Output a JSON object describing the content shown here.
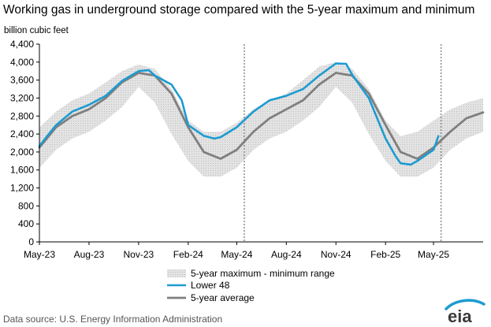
{
  "chart_data": {
    "type": "line",
    "title": "Working gas in underground  storage compared with the 5-year maximum and minimum",
    "ylabel": "billion cubic feet",
    "ylim": [
      0,
      4400
    ],
    "y_ticks": [
      "0",
      "400",
      "800",
      "1,200",
      "1,600",
      "2,000",
      "2,400",
      "2,800",
      "3,200",
      "3,600",
      "4,000",
      "4,400"
    ],
    "y_tick_values": [
      0,
      400,
      800,
      1200,
      1600,
      2000,
      2400,
      2800,
      3200,
      3600,
      4000,
      4400
    ],
    "x_ticks": [
      "May-23",
      "Aug-23",
      "Nov-23",
      "Feb-24",
      "May-24",
      "Aug-24",
      "Nov-24",
      "Feb-25",
      "May-25"
    ],
    "x_tick_dates": [
      "2023-05-01",
      "2023-08-01",
      "2023-11-01",
      "2024-02-01",
      "2024-05-01",
      "2024-08-01",
      "2024-11-01",
      "2025-02-01",
      "2025-05-01"
    ],
    "xlim": [
      "2023-05-01",
      "2025-08-01"
    ],
    "grid": false,
    "legend_position": "bottom-center",
    "vertical_markers": [
      "2024-05-15",
      "2025-05-15"
    ],
    "series": [
      {
        "name": "5-year maximum - minimum range",
        "color": "#d9d9d9",
        "dates": [
          "2023-05-01",
          "2023-06-01",
          "2023-07-01",
          "2023-08-01",
          "2023-09-01",
          "2023-10-01",
          "2023-11-01",
          "2023-12-01",
          "2024-01-01",
          "2024-02-01",
          "2024-03-01",
          "2024-04-01",
          "2024-05-01",
          "2024-06-01",
          "2024-07-01",
          "2024-08-01",
          "2024-09-01",
          "2024-10-01",
          "2024-11-01",
          "2024-12-01",
          "2025-01-01",
          "2025-02-01",
          "2025-03-01",
          "2025-04-01",
          "2025-05-01",
          "2025-06-01",
          "2025-07-01",
          "2025-08-01"
        ],
        "max": [
          2550,
          2900,
          3150,
          3300,
          3550,
          3800,
          3950,
          3850,
          3400,
          2700,
          2450,
          2450,
          2650,
          2950,
          3150,
          3300,
          3600,
          3900,
          4000,
          3850,
          3400,
          2700,
          2350,
          2450,
          2700,
          2950,
          3100,
          3200
        ],
        "min": [
          1650,
          2050,
          2300,
          2450,
          2700,
          3000,
          3450,
          3100,
          2400,
          1800,
          1450,
          1450,
          1650,
          2050,
          2300,
          2450,
          2700,
          3000,
          3450,
          3100,
          2400,
          1800,
          1450,
          1450,
          1650,
          2050,
          2300,
          2450
        ]
      },
      {
        "name": "Lower 48",
        "color": "#1d9bd1",
        "dates": [
          "2023-05-01",
          "2023-05-15",
          "2023-06-01",
          "2023-07-01",
          "2023-08-01",
          "2023-09-01",
          "2023-10-01",
          "2023-11-01",
          "2023-11-20",
          "2023-12-01",
          "2024-01-01",
          "2024-01-20",
          "2024-02-01",
          "2024-03-01",
          "2024-03-20",
          "2024-04-01",
          "2024-05-01",
          "2024-06-01",
          "2024-07-01",
          "2024-08-01",
          "2024-09-01",
          "2024-10-01",
          "2024-11-01",
          "2024-11-20",
          "2024-12-01",
          "2025-01-01",
          "2025-02-01",
          "2025-02-20",
          "2025-03-01",
          "2025-03-20",
          "2025-04-01",
          "2025-05-01",
          "2025-05-10"
        ],
        "values": [
          2130,
          2350,
          2600,
          2900,
          3050,
          3250,
          3580,
          3800,
          3820,
          3700,
          3500,
          3150,
          2600,
          2360,
          2300,
          2330,
          2550,
          2900,
          3150,
          3250,
          3400,
          3700,
          3970,
          3960,
          3720,
          3200,
          2300,
          1900,
          1750,
          1720,
          1800,
          2050,
          2350
        ]
      },
      {
        "name": "5-year average",
        "color": "#7f7f7f",
        "dates": [
          "2023-05-01",
          "2023-06-01",
          "2023-07-01",
          "2023-08-01",
          "2023-09-01",
          "2023-10-01",
          "2023-11-01",
          "2023-12-01",
          "2024-01-01",
          "2024-02-01",
          "2024-03-01",
          "2024-04-01",
          "2024-05-01",
          "2024-06-01",
          "2024-07-01",
          "2024-08-01",
          "2024-09-01",
          "2024-10-01",
          "2024-11-01",
          "2024-12-01",
          "2025-01-01",
          "2025-02-01",
          "2025-03-01",
          "2025-04-01",
          "2025-05-01",
          "2025-06-01",
          "2025-07-01",
          "2025-08-01"
        ],
        "values": [
          2100,
          2550,
          2800,
          2950,
          3200,
          3550,
          3760,
          3700,
          3300,
          2550,
          2000,
          1850,
          2050,
          2450,
          2750,
          2950,
          3150,
          3500,
          3760,
          3700,
          3300,
          2600,
          2000,
          1850,
          2100,
          2450,
          2750,
          2880
        ]
      }
    ]
  },
  "footer": {
    "source": "Data source:  U.S. Energy Information Administration",
    "logo_text": "eia"
  }
}
